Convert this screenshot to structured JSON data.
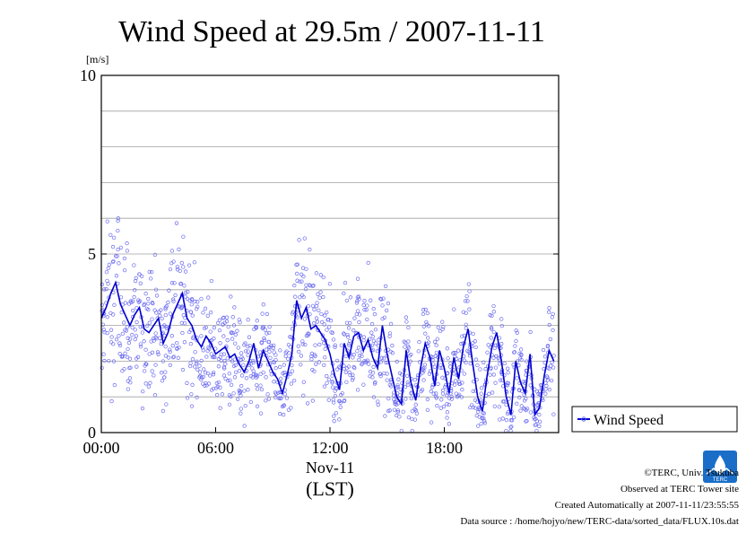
{
  "chart_data": {
    "type": "scatter",
    "title": "Wind Speed at 29.5m / 2007-11-11",
    "ylabel": "[m/s]",
    "xlabel_date": "Nov-11",
    "xlabel_tz": "(LST)",
    "ylim": [
      0,
      10
    ],
    "xlim": [
      0,
      24
    ],
    "y_ticks": [
      "0",
      "5",
      "10"
    ],
    "x_ticks": [
      {
        "x": 0,
        "label": "00:00"
      },
      {
        "x": 6,
        "label": "06:00"
      },
      {
        "x": 12,
        "label": "12:00"
      },
      {
        "x": 18,
        "label": "18:00"
      }
    ],
    "grid": true,
    "legend_position": "right",
    "series": [
      {
        "name": "Wind Speed",
        "color": "#0000d0",
        "scatter_color": "#6b6bf0",
        "x": [
          0.0,
          0.25,
          0.5,
          0.75,
          1.0,
          1.25,
          1.5,
          1.75,
          2.0,
          2.25,
          2.5,
          2.75,
          3.0,
          3.25,
          3.5,
          3.75,
          4.0,
          4.25,
          4.5,
          4.75,
          5.0,
          5.25,
          5.5,
          5.75,
          6.0,
          6.25,
          6.5,
          6.75,
          7.0,
          7.25,
          7.5,
          7.75,
          8.0,
          8.25,
          8.5,
          8.75,
          9.0,
          9.25,
          9.5,
          9.75,
          10.0,
          10.25,
          10.5,
          10.75,
          11.0,
          11.25,
          11.5,
          11.75,
          12.0,
          12.25,
          12.5,
          12.75,
          13.0,
          13.25,
          13.5,
          13.75,
          14.0,
          14.25,
          14.5,
          14.75,
          15.0,
          15.25,
          15.5,
          15.75,
          16.0,
          16.25,
          16.5,
          16.75,
          17.0,
          17.25,
          17.5,
          17.75,
          18.0,
          18.25,
          18.5,
          18.75,
          19.0,
          19.25,
          19.5,
          19.75,
          20.0,
          20.25,
          20.5,
          20.75,
          21.0,
          21.25,
          21.5,
          21.75,
          22.0,
          22.25,
          22.5,
          22.75,
          23.0,
          23.25,
          23.5,
          23.75
        ],
        "values": [
          3.2,
          3.5,
          3.9,
          4.2,
          3.6,
          3.3,
          3.0,
          3.3,
          3.5,
          2.9,
          2.8,
          3.0,
          3.2,
          2.5,
          2.8,
          3.3,
          3.6,
          3.9,
          3.2,
          3.0,
          2.6,
          2.4,
          2.7,
          2.5,
          2.2,
          2.3,
          2.4,
          2.1,
          2.2,
          1.9,
          1.7,
          2.0,
          2.5,
          1.8,
          2.3,
          2.0,
          1.7,
          1.5,
          1.1,
          1.6,
          2.2,
          3.7,
          3.2,
          3.5,
          2.9,
          3.0,
          2.8,
          2.6,
          2.2,
          1.6,
          1.2,
          2.5,
          2.1,
          2.7,
          2.8,
          2.3,
          2.6,
          2.1,
          1.8,
          3.0,
          2.2,
          1.6,
          1.0,
          0.8,
          2.3,
          1.4,
          0.9,
          1.8,
          2.5,
          2.1,
          1.3,
          2.3,
          1.8,
          1.1,
          2.1,
          1.5,
          2.4,
          2.9,
          1.9,
          1.0,
          0.6,
          1.6,
          2.4,
          2.8,
          2.0,
          1.0,
          0.5,
          2.0,
          1.4,
          1.1,
          2.2,
          0.5,
          0.7,
          1.6,
          2.3,
          2.0
        ]
      }
    ]
  },
  "footer": {
    "copyright": "©TERC, Univ. Tsukuba",
    "observed": "Observed at TERC Tower site",
    "created": "Created Automatically at 2007-11-11/23:55:55",
    "source": "Data source : /home/hojyo/new/TERC-data/sorted_data/FLUX.10s.dat"
  },
  "logo": {
    "text": "TERC",
    "color": "#1a6ec8"
  }
}
